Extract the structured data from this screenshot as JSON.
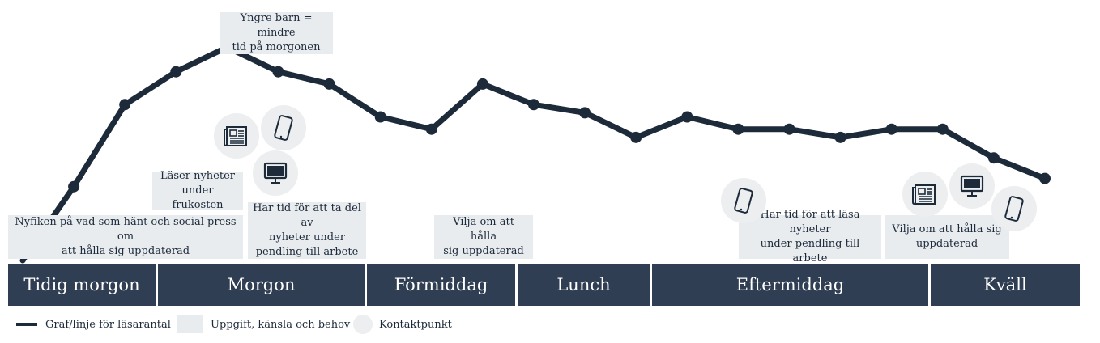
{
  "colors": {
    "line": "#1d2a3a",
    "note_bg": "#e8ecef",
    "timebar_bg": "#2f3e52",
    "contact_bg": "#eceef0"
  },
  "chart_data": {
    "type": "line",
    "series": [
      {
        "values": [
          0,
          18,
          38,
          46,
          52,
          46,
          43,
          35,
          32,
          43,
          38,
          36,
          30,
          35,
          32,
          32,
          30,
          32,
          32,
          25,
          20
        ]
      }
    ],
    "ylim": [
      0,
      56
    ]
  },
  "timeline": [
    {
      "label": "Tidig morgon"
    },
    {
      "label": "Morgon"
    },
    {
      "label": "Förmiddag"
    },
    {
      "label": "Lunch"
    },
    {
      "label": "Eftermiddag"
    },
    {
      "label": "Kväll"
    }
  ],
  "notes": [
    {
      "text": "Nyfiken på vad som hänt och social press om\natt hålla sig uppdaterad"
    },
    {
      "text": "Läser nyheter\nunder frukosten"
    },
    {
      "text": "Yngre barn = mindre\ntid på morgonen"
    },
    {
      "text": "Har tid för att ta del av\nnyheter under\npendling till arbete"
    },
    {
      "text": "Vilja om att hålla\nsig uppdaterad"
    },
    {
      "text": "Har tid för att läsa nyheter\nunder pendling till arbete"
    },
    {
      "text": "Vilja om att hålla sig\nuppdaterad"
    }
  ],
  "contact_points": [
    {
      "icon": "newspaper-icon"
    },
    {
      "icon": "tablet-icon"
    },
    {
      "icon": "desktop-icon"
    },
    {
      "icon": "tablet-icon"
    },
    {
      "icon": "newspaper-icon"
    },
    {
      "icon": "desktop-icon"
    },
    {
      "icon": "tablet-icon"
    }
  ],
  "legend": {
    "line_label": "Graf/linje för läsarantal",
    "box_label": "Uppgift, känsla och behov",
    "dot_label": "Kontaktpunkt"
  }
}
